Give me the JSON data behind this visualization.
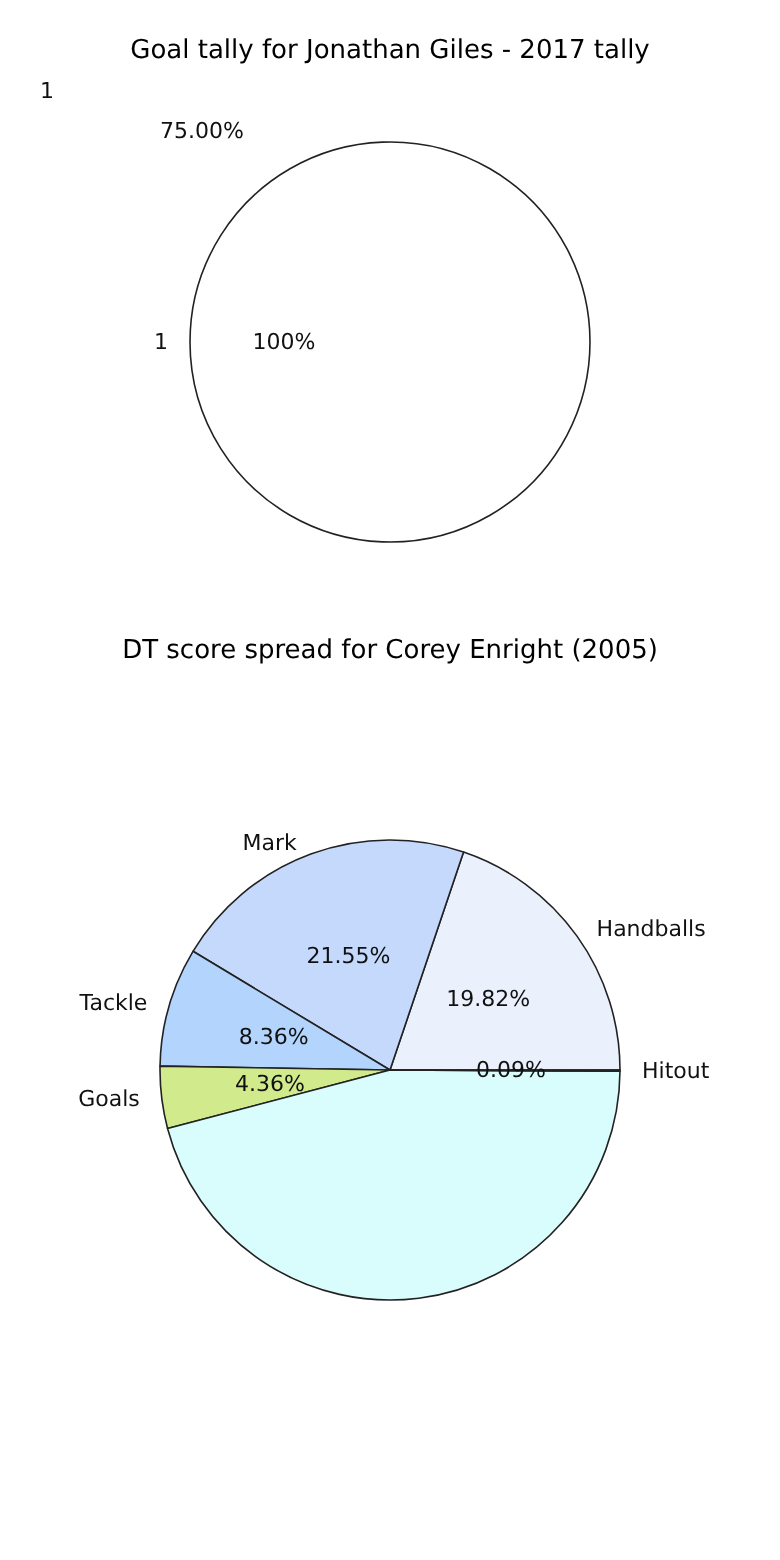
{
  "chart_data": [
    {
      "type": "pie",
      "title": "Goal tally for Jonathan Giles - 2017 tally",
      "categories": [
        "1"
      ],
      "values": [
        100
      ],
      "colors": [
        "#ffffff"
      ],
      "value_labels": [
        "100%"
      ],
      "annotations": [
        "1",
        "75.00%"
      ]
    },
    {
      "type": "pie",
      "title": "DT score spread for Corey Enright (2005)",
      "categories": [
        "Handballs",
        "Mark",
        "Tackle",
        "Goals",
        null,
        "Hitout"
      ],
      "values": [
        19.82,
        21.55,
        8.36,
        4.36,
        45.82,
        0.09
      ],
      "colors": [
        "#eaf1fd",
        "#c5d9fd",
        "#b3d5fd",
        "#d0ea8c",
        "#d9fdfd",
        "#e0e0e0"
      ],
      "value_labels": [
        "19.82%",
        "21.55%",
        "8.36%",
        "4.36%",
        null,
        "0.09%"
      ]
    }
  ]
}
